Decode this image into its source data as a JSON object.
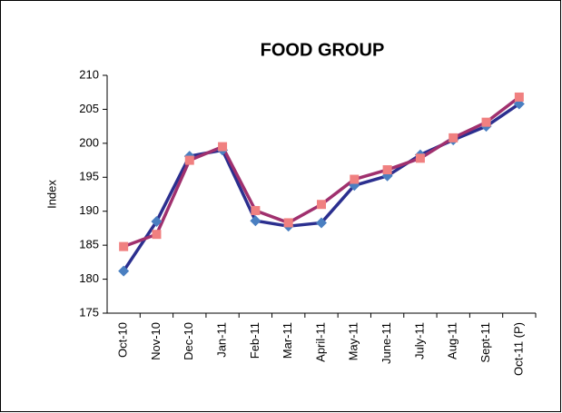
{
  "chart_data": {
    "type": "line",
    "title": "FOOD GROUP",
    "y_label": "Index",
    "categories": [
      "Oct-10",
      "Nov-10",
      "Dec-10",
      "Jan-11",
      "Feb-11",
      "Mar-11",
      "April-11",
      "May-11",
      "June-11",
      "July-11",
      "Aug-11",
      "Sept-11",
      "Oct-11 (P)"
    ],
    "series": [
      {
        "color": "#2b2f8f",
        "marker_color": "#4a7fc1",
        "marker": "diamond",
        "values": [
          181.2,
          188.5,
          198.1,
          199.0,
          188.6,
          187.8,
          188.3,
          193.8,
          195.2,
          198.3,
          200.5,
          202.5,
          205.8
        ]
      },
      {
        "color": "#a0306e",
        "marker_color": "#f08080",
        "marker": "square",
        "values": [
          184.8,
          186.6,
          197.5,
          199.5,
          190.1,
          188.3,
          191.0,
          194.7,
          196.1,
          197.8,
          200.8,
          203.1,
          206.8
        ]
      }
    ],
    "ylim": [
      175,
      210
    ],
    "yticks": [
      175,
      180,
      185,
      190,
      195,
      200,
      205,
      210
    ],
    "grid": false
  }
}
